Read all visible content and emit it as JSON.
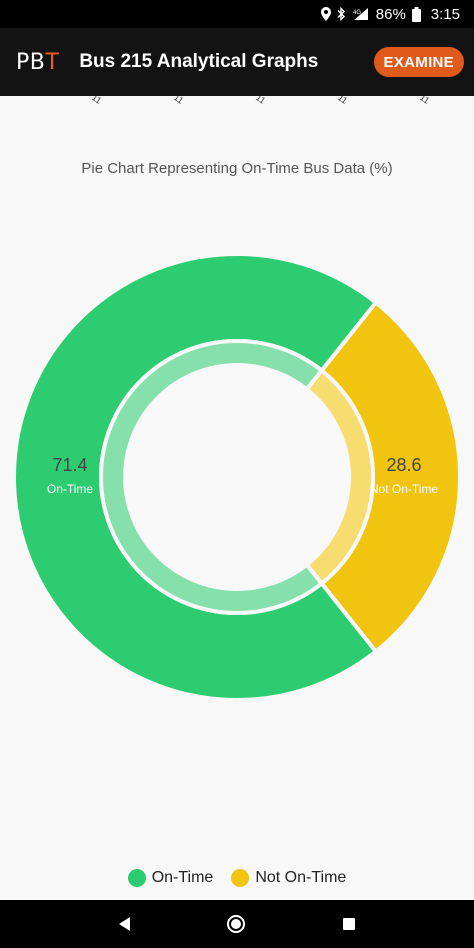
{
  "status_bar": {
    "battery": "86%",
    "time": "3:15",
    "network": "4G",
    "icons": [
      "location-icon",
      "bluetooth-icon",
      "signal-icon",
      "battery-icon"
    ]
  },
  "app_bar": {
    "logo_prefix": "PB",
    "logo_accent": "T",
    "title": "Bus 215 Analytical Graphs",
    "examine_label": "EXAMINE"
  },
  "top_ticks": [
    "11",
    "11",
    "11",
    "11",
    "11"
  ],
  "colors": {
    "on_time": "#2ecc71",
    "on_time_inner": "#86e0ab",
    "not_on_time": "#f1c40f",
    "not_on_time_inner": "#f7dc6f",
    "accent": "#e05a1a"
  },
  "chart_data": {
    "type": "pie",
    "title": "Pie Chart Representing On-Time Bus Data (%)",
    "categories": [
      "On-Time",
      "Not On-Time"
    ],
    "values": [
      71.4,
      28.6
    ],
    "value_labels": [
      "71.4",
      "28.6"
    ],
    "legend_position": "bottom",
    "style": "donut"
  },
  "legend": [
    {
      "label": "On-Time"
    },
    {
      "label": "Not On-Time"
    }
  ]
}
